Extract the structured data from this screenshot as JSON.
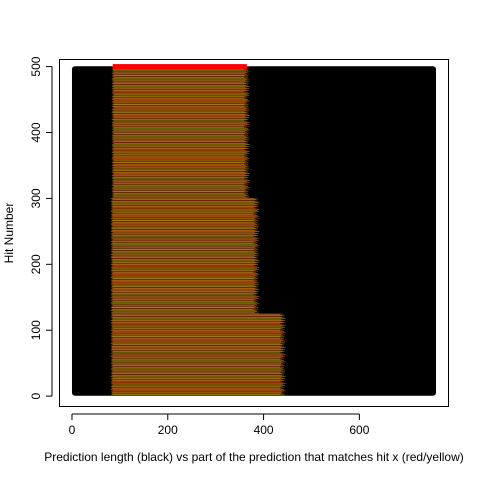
{
  "chart_data": {
    "type": "segments",
    "xlabel": "Prediction length (black) vs part of the prediction that matches hit x (red/yellow)",
    "ylabel": "Hit Number",
    "xlim": [
      -25,
      785
    ],
    "ylim": [
      -15,
      510
    ],
    "x_ticks": [
      0,
      200,
      400,
      600
    ],
    "y_ticks": [
      0,
      100,
      200,
      300,
      400,
      500
    ],
    "x_tick_labels": [
      "0",
      "200",
      "400",
      "600"
    ],
    "y_tick_labels": [
      "0",
      "100",
      "200",
      "300",
      "400",
      "500"
    ],
    "n_hits": 500,
    "prediction_length_segments": [
      {
        "from_hit": 1,
        "to_hit": 500,
        "x_start": 0,
        "x_end": 760
      }
    ],
    "match_bands": [
      {
        "from_hit": 1,
        "to_hit": 125,
        "x_start": 83,
        "x_end": 440
      },
      {
        "from_hit": 126,
        "to_hit": 300,
        "x_start": 83,
        "x_end": 385
      },
      {
        "from_hit": 301,
        "to_hit": 500,
        "x_start": 85,
        "x_end": 365
      }
    ],
    "top_hit_highlight": {
      "hit": 500,
      "x_start": 85,
      "x_end": 365
    },
    "colors": {
      "prediction": "#000000",
      "match_red": "#8b2500",
      "match_yellow": "#8b8b00",
      "match_mixed": "#b5651d",
      "highlight": "#ff0000"
    },
    "grid": false,
    "legend": "none"
  }
}
